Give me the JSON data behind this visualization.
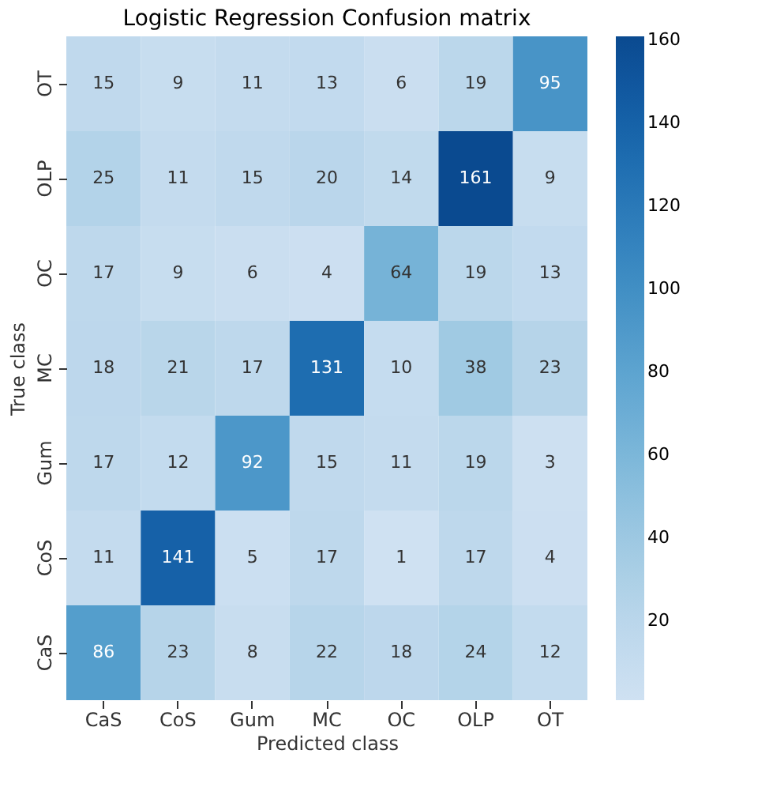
{
  "chart_data": {
    "type": "heatmap",
    "title": "Logistic Regression Confusion matrix",
    "xlabel": "Predicted class",
    "ylabel": "True class",
    "categories": [
      "CaS",
      "CoS",
      "Gum",
      "MC",
      "OC",
      "OLP",
      "OT"
    ],
    "y_categories": [
      "OT",
      "OLP",
      "OC",
      "MC",
      "Gum",
      "CoS",
      "CaS"
    ],
    "cells": [
      [
        15,
        9,
        11,
        13,
        6,
        19,
        95
      ],
      [
        25,
        11,
        15,
        20,
        14,
        161,
        9
      ],
      [
        17,
        9,
        6,
        4,
        64,
        19,
        13
      ],
      [
        18,
        21,
        17,
        131,
        10,
        38,
        23
      ],
      [
        17,
        12,
        92,
        15,
        11,
        19,
        3
      ],
      [
        11,
        141,
        5,
        17,
        1,
        17,
        4
      ],
      [
        86,
        23,
        8,
        22,
        18,
        24,
        12
      ]
    ],
    "clim": [
      1,
      161
    ],
    "cticks": [
      20,
      40,
      60,
      80,
      100,
      120,
      140,
      160
    ],
    "data_labels": true
  }
}
